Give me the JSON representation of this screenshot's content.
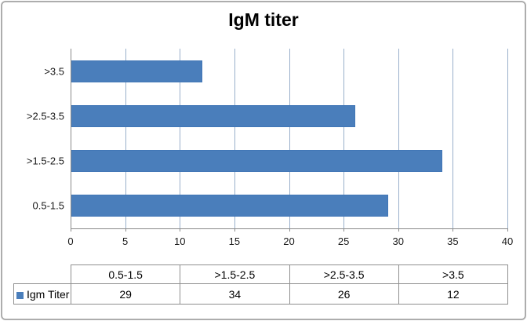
{
  "chart_data": {
    "type": "bar",
    "orientation": "horizontal",
    "title": "IgM titer",
    "categories": [
      "0.5-1.5",
      ">1.5-2.5",
      ">2.5-3.5",
      ">3.5"
    ],
    "series": [
      {
        "name": "Igm Titer",
        "values": [
          29,
          34,
          26,
          12
        ]
      }
    ],
    "x_ticks": [
      0,
      5,
      10,
      15,
      20,
      25,
      30,
      35,
      40
    ],
    "xlim": [
      0,
      40
    ],
    "grid": "vertical-major-only",
    "plot_order_top_to_bottom": [
      ">3.5",
      ">2.5-3.5",
      ">1.5-2.5",
      "0.5-1.5"
    ],
    "legend_position": "data-table-row-label",
    "bar_color": "#4a7ebb",
    "gridline_color": "#9ab0cb",
    "axis_color": "#8a8a8a"
  },
  "data_table": {
    "row_label": "Igm Titer",
    "columns": [
      "0.5-1.5",
      ">1.5-2.5",
      ">2.5-3.5",
      ">3.5"
    ],
    "values": [
      "29",
      "34",
      "26",
      "12"
    ]
  }
}
